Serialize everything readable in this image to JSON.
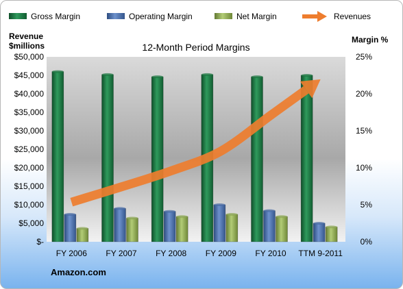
{
  "chart_data": {
    "type": "bar",
    "title": "12-Month Period Margins",
    "categories": [
      "FY 2006",
      "FY 2007",
      "FY 2008",
      "FY 2009",
      "FY 2010",
      "TTM 9-2011"
    ],
    "series": [
      {
        "name": "Gross Margin",
        "axis": "right",
        "unit": "%",
        "color": "#1f7a45",
        "values": [
          23.0,
          22.6,
          22.3,
          22.6,
          22.3,
          22.5
        ]
      },
      {
        "name": "Operating Margin",
        "axis": "right",
        "unit": "%",
        "color": "#4a6ea8",
        "values": [
          3.7,
          4.5,
          4.1,
          5.0,
          4.2,
          2.5
        ]
      },
      {
        "name": "Net Margin",
        "axis": "right",
        "unit": "%",
        "color": "#8faa55",
        "values": [
          1.8,
          3.2,
          3.4,
          3.7,
          3.4,
          2.0
        ]
      },
      {
        "name": "Revenues",
        "type": "line-arrow",
        "axis": "left",
        "unit": "$millions",
        "color": "#ee7d2e",
        "values": [
          10711,
          14835,
          19166,
          24509,
          34204,
          43914
        ]
      }
    ],
    "left_axis": {
      "title_line1": "Revenue",
      "title_line2": "$millions",
      "ylim": [
        0,
        50000
      ],
      "tick_values": [
        0,
        5000,
        10000,
        15000,
        20000,
        25000,
        30000,
        35000,
        40000,
        45000,
        50000
      ],
      "tick_labels": [
        "$-",
        "$5,000",
        "$10,000",
        "$15,000",
        "$20,000",
        "$25,000",
        "$30,000",
        "$35,000",
        "$40,000",
        "$45,000",
        "$50,000"
      ]
    },
    "right_axis": {
      "title": "Margin %",
      "ylim": [
        0,
        25
      ],
      "tick_values": [
        0,
        5,
        10,
        15,
        20,
        25
      ],
      "tick_labels": [
        "0%",
        "5%",
        "10%",
        "15%",
        "20%",
        "25%"
      ]
    },
    "legend_position": "top",
    "grid": false,
    "source_label": "Amazon.com"
  }
}
